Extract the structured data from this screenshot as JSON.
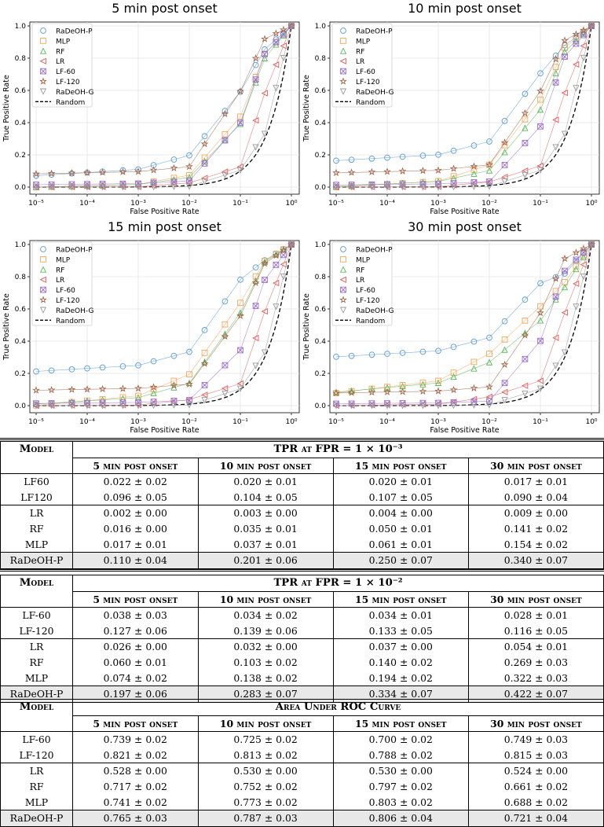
{
  "chart_data": [
    {
      "type": "line",
      "title": "5 min post onset",
      "xlabel": "False Positive Rate",
      "ylabel": "True Positive Rate",
      "xscale": "log",
      "xlim": [
        1e-05,
        1
      ],
      "ylim": [
        0,
        1
      ],
      "xticks": [
        "10⁻⁵",
        "10⁻⁴",
        "10⁻³",
        "10⁻²",
        "10⁻¹",
        "10⁰"
      ],
      "yticks": [
        "0.0",
        "0.2",
        "0.4",
        "0.6",
        "0.8",
        "1.0"
      ],
      "legend_position": "top-left",
      "fpr": [
        1e-05,
        2e-05,
        5e-05,
        0.0001,
        0.0002,
        0.0005,
        0.001,
        0.002,
        0.005,
        0.01,
        0.02,
        0.05,
        0.1,
        0.2,
        0.3,
        0.5,
        0.7,
        1
      ],
      "series": [
        {
          "name": "RaDeOH-P",
          "tpr_at_1e-3": 0.11,
          "tpr_at_1e-2": 0.197,
          "auc": 0.765
        },
        {
          "name": "MLP",
          "tpr_at_1e-3": 0.017,
          "tpr_at_1e-2": 0.074,
          "auc": 0.741
        },
        {
          "name": "RF",
          "tpr_at_1e-3": 0.016,
          "tpr_at_1e-2": 0.06,
          "auc": 0.717
        },
        {
          "name": "LR",
          "tpr_at_1e-3": 0.002,
          "tpr_at_1e-2": 0.026,
          "auc": 0.528
        },
        {
          "name": "LF-60",
          "tpr_at_1e-3": 0.022,
          "tpr_at_1e-2": 0.038,
          "auc": 0.739
        },
        {
          "name": "LF-120",
          "tpr_at_1e-3": 0.096,
          "tpr_at_1e-2": 0.127,
          "auc": 0.821
        },
        {
          "name": "RaDeOH-G",
          "tpr_at_1e-3": 0.0,
          "tpr_at_1e-2": 0.0,
          "auc": 0.5
        },
        {
          "name": "Random"
        }
      ]
    },
    {
      "type": "line",
      "title": "10 min post onset",
      "xlabel": "False Positive Rate",
      "ylabel": "True Positive Rate",
      "xscale": "log",
      "xlim": [
        1e-05,
        1
      ],
      "ylim": [
        0,
        1
      ],
      "xticks": [
        "10⁻⁵",
        "10⁻⁴",
        "10⁻³",
        "10⁻²",
        "10⁻¹",
        "10⁰"
      ],
      "yticks": [
        "0.0",
        "0.2",
        "0.4",
        "0.6",
        "0.8",
        "1.0"
      ],
      "legend_position": "top-left",
      "fpr": [
        1e-05,
        2e-05,
        5e-05,
        0.0001,
        0.0002,
        0.0005,
        0.001,
        0.002,
        0.005,
        0.01,
        0.02,
        0.05,
        0.1,
        0.2,
        0.3,
        0.5,
        0.7,
        1
      ],
      "series": [
        {
          "name": "RaDeOH-P",
          "tpr_at_1e-3": 0.201,
          "tpr_at_1e-2": 0.283,
          "auc": 0.787
        },
        {
          "name": "MLP",
          "tpr_at_1e-3": 0.037,
          "tpr_at_1e-2": 0.138,
          "auc": 0.773
        },
        {
          "name": "RF",
          "tpr_at_1e-3": 0.035,
          "tpr_at_1e-2": 0.103,
          "auc": 0.752
        },
        {
          "name": "LR",
          "tpr_at_1e-3": 0.003,
          "tpr_at_1e-2": 0.032,
          "auc": 0.53
        },
        {
          "name": "LF-60",
          "tpr_at_1e-3": 0.02,
          "tpr_at_1e-2": 0.034,
          "auc": 0.725
        },
        {
          "name": "LF-120",
          "tpr_at_1e-3": 0.104,
          "tpr_at_1e-2": 0.139,
          "auc": 0.813
        },
        {
          "name": "RaDeOH-G",
          "tpr_at_1e-3": 0.0,
          "tpr_at_1e-2": 0.0,
          "auc": 0.5
        },
        {
          "name": "Random"
        }
      ]
    },
    {
      "type": "line",
      "title": "15 min post onset",
      "xlabel": "False Positive Rate",
      "ylabel": "True Positive Rate",
      "xscale": "log",
      "xlim": [
        1e-05,
        1
      ],
      "ylim": [
        0,
        1
      ],
      "xticks": [
        "10⁻⁵",
        "10⁻⁴",
        "10⁻³",
        "10⁻²",
        "10⁻¹",
        "10⁰"
      ],
      "yticks": [
        "0.0",
        "0.2",
        "0.4",
        "0.6",
        "0.8",
        "1.0"
      ],
      "legend_position": "top-left",
      "fpr": [
        1e-05,
        2e-05,
        5e-05,
        0.0001,
        0.0002,
        0.0005,
        0.001,
        0.002,
        0.005,
        0.01,
        0.02,
        0.05,
        0.1,
        0.2,
        0.3,
        0.5,
        0.7,
        1
      ],
      "series": [
        {
          "name": "RaDeOH-P",
          "tpr_at_1e-3": 0.25,
          "tpr_at_1e-2": 0.334,
          "auc": 0.806
        },
        {
          "name": "MLP",
          "tpr_at_1e-3": 0.061,
          "tpr_at_1e-2": 0.194,
          "auc": 0.803
        },
        {
          "name": "RF",
          "tpr_at_1e-3": 0.05,
          "tpr_at_1e-2": 0.14,
          "auc": 0.797
        },
        {
          "name": "LR",
          "tpr_at_1e-3": 0.004,
          "tpr_at_1e-2": 0.037,
          "auc": 0.53
        },
        {
          "name": "LF-60",
          "tpr_at_1e-3": 0.02,
          "tpr_at_1e-2": 0.034,
          "auc": 0.7
        },
        {
          "name": "LF-120",
          "tpr_at_1e-3": 0.107,
          "tpr_at_1e-2": 0.133,
          "auc": 0.788
        },
        {
          "name": "RaDeOH-G",
          "tpr_at_1e-3": 0.0,
          "tpr_at_1e-2": 0.0,
          "auc": 0.5
        },
        {
          "name": "Random"
        }
      ]
    },
    {
      "type": "line",
      "title": "30 min post onset",
      "xlabel": "False Positive Rate",
      "ylabel": "True Positive Rate",
      "xscale": "log",
      "xlim": [
        1e-05,
        1
      ],
      "ylim": [
        0,
        1
      ],
      "xticks": [
        "10⁻⁵",
        "10⁻⁴",
        "10⁻³",
        "10⁻²",
        "10⁻¹",
        "10⁰"
      ],
      "yticks": [
        "0.0",
        "0.2",
        "0.4",
        "0.6",
        "0.8",
        "1.0"
      ],
      "legend_position": "top-left",
      "fpr": [
        1e-05,
        2e-05,
        5e-05,
        0.0001,
        0.0002,
        0.0005,
        0.001,
        0.002,
        0.005,
        0.01,
        0.02,
        0.05,
        0.1,
        0.2,
        0.3,
        0.5,
        0.7,
        1
      ],
      "series": [
        {
          "name": "RaDeOH-P",
          "tpr_at_1e-3": 0.34,
          "tpr_at_1e-2": 0.422,
          "auc": 0.721
        },
        {
          "name": "MLP",
          "tpr_at_1e-3": 0.154,
          "tpr_at_1e-2": 0.322,
          "auc": 0.688
        },
        {
          "name": "RF",
          "tpr_at_1e-3": 0.141,
          "tpr_at_1e-2": 0.269,
          "auc": 0.661
        },
        {
          "name": "LR",
          "tpr_at_1e-3": 0.009,
          "tpr_at_1e-2": 0.054,
          "auc": 0.524
        },
        {
          "name": "LF-60",
          "tpr_at_1e-3": 0.017,
          "tpr_at_1e-2": 0.028,
          "auc": 0.749
        },
        {
          "name": "LF-120",
          "tpr_at_1e-3": 0.09,
          "tpr_at_1e-2": 0.116,
          "auc": 0.815
        },
        {
          "name": "RaDeOH-G",
          "tpr_at_1e-3": 0.0,
          "tpr_at_1e-2": 0.0,
          "auc": 0.5
        },
        {
          "name": "Random"
        }
      ]
    }
  ],
  "series_style": [
    {
      "name": "RaDeOH-P",
      "color": "#5b9bd5",
      "marker": "circle"
    },
    {
      "name": "MLP",
      "color": "#f5a55a",
      "marker": "square"
    },
    {
      "name": "RF",
      "color": "#5cb85c",
      "marker": "triangle-up"
    },
    {
      "name": "LR",
      "color": "#e05a5a",
      "marker": "triangle-left"
    },
    {
      "name": "LF-60",
      "color": "#9b6fd0",
      "marker": "x-square"
    },
    {
      "name": "LF-120",
      "color": "#a0664b",
      "marker": "star"
    },
    {
      "name": "RaDeOH-G",
      "color": "#999999",
      "marker": "triangle-down"
    },
    {
      "name": "Random",
      "color": "#000000",
      "marker": "dashed-line"
    }
  ],
  "tables": [
    {
      "model_header": "Model",
      "title": "TPR at FPR = 1 × 10⁻³",
      "columns": [
        "5 min post onset",
        "10 min post onset",
        "15 min post onset",
        "30 min post onset"
      ],
      "rows": [
        {
          "model": "LF60",
          "cells": [
            "0.022 ± 0.02",
            "0.020 ± 0.01",
            "0.020 ± 0.01",
            "0.017 ± 0.01"
          ]
        },
        {
          "model": "LF120",
          "cells": [
            "0.096 ± 0.05",
            "0.104 ± 0.05",
            "0.107 ± 0.05",
            "0.090 ± 0.04"
          ]
        },
        {
          "model": "LR",
          "cells": [
            "0.002 ± 0.00",
            "0.003 ± 0.00",
            "0.004 ± 0.00",
            "0.009 ± 0.00"
          ]
        },
        {
          "model": "RF",
          "cells": [
            "0.016 ± 0.00",
            "0.035 ± 0.01",
            "0.050 ± 0.01",
            "0.141 ± 0.02"
          ]
        },
        {
          "model": "MLP",
          "cells": [
            "0.017 ± 0.01",
            "0.037 ± 0.01",
            "0.061 ± 0.01",
            "0.154 ± 0.02"
          ]
        },
        {
          "model": "RaDeOH-P",
          "cells": [
            "0.110 ± 0.04",
            "0.201 ± 0.06",
            "0.250 ± 0.07",
            "0.340 ± 0.07"
          ]
        }
      ]
    },
    {
      "model_header": "Model",
      "title": "TPR at FPR = 1 × 10⁻²",
      "columns": [
        "5 min post onset",
        "10 min post onset",
        "15 min post onset",
        "30 min post onset"
      ],
      "rows": [
        {
          "model": "LF-60",
          "cells": [
            "0.038 ± 0.03",
            "0.034 ± 0.02",
            "0.034 ± 0.01",
            "0.028 ± 0.01"
          ]
        },
        {
          "model": "LF-120",
          "cells": [
            "0.127 ± 0.06",
            "0.139 ± 0.06",
            "0.133 ± 0.05",
            "0.116 ± 0.05"
          ]
        },
        {
          "model": "LR",
          "cells": [
            "0.026 ± 0.00",
            "0.032 ± 0.00",
            "0.037 ± 0.00",
            "0.054 ± 0.01"
          ]
        },
        {
          "model": "RF",
          "cells": [
            "0.060 ± 0.01",
            "0.103 ± 0.02",
            "0.140 ± 0.02",
            "0.269 ± 0.03"
          ]
        },
        {
          "model": "MLP",
          "cells": [
            "0.074 ± 0.02",
            "0.138 ± 0.02",
            "0.194 ± 0.02",
            "0.322 ± 0.03"
          ]
        },
        {
          "model": "RaDeOH-P",
          "cells": [
            "0.197 ± 0.06",
            "0.283 ± 0.07",
            "0.334 ± 0.07",
            "0.422 ± 0.07"
          ]
        }
      ]
    },
    {
      "model_header": "Model",
      "title": "Area Under ROC Curve",
      "columns": [
        "5 min post onset",
        "10 min post onset",
        "15 min post onset",
        "30 min post onset"
      ],
      "rows": [
        {
          "model": "LF-60",
          "cells": [
            "0.739 ± 0.02",
            "0.725 ± 0.02",
            "0.700 ± 0.02",
            "0.749 ± 0.03"
          ]
        },
        {
          "model": "LF-120",
          "cells": [
            "0.821 ± 0.02",
            "0.813 ± 0.02",
            "0.788 ± 0.02",
            "0.815 ± 0.03"
          ]
        },
        {
          "model": "LR",
          "cells": [
            "0.528 ± 0.00",
            "0.530 ± 0.00",
            "0.530 ± 0.00",
            "0.524 ± 0.00"
          ]
        },
        {
          "model": "RF",
          "cells": [
            "0.717 ± 0.02",
            "0.752 ± 0.02",
            "0.797 ± 0.02",
            "0.661 ± 0.02"
          ]
        },
        {
          "model": "MLP",
          "cells": [
            "0.741 ± 0.02",
            "0.773 ± 0.02",
            "0.803 ± 0.02",
            "0.688 ± 0.02"
          ]
        },
        {
          "model": "RaDeOH-P",
          "cells": [
            "0.765 ± 0.03",
            "0.787 ± 0.03",
            "0.806 ± 0.04",
            "0.721 ± 0.04"
          ]
        }
      ]
    }
  ]
}
